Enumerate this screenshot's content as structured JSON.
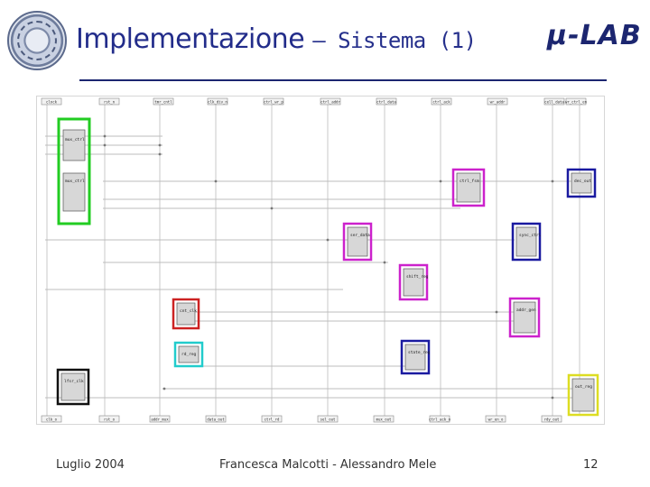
{
  "header": {
    "title_main": "Implementazione",
    "title_sub": "– Sistema (1)",
    "logo_text": "μ-LAB"
  },
  "footer": {
    "date": "Luglio 2004",
    "authors": "Francesca Malcotti - Alessandro Mele",
    "page": "12"
  },
  "diagram": {
    "top_ports": [
      "clock",
      "rst_n",
      "tmr_cntl",
      "clk_div_n",
      "ctrl_wr_p",
      "ctrl_addr",
      "ctrl_data",
      "ctrl_ack",
      "wr_addr",
      "cell_data",
      "wr_ctrl_en"
    ],
    "bottom_ports": [
      "clk_o",
      "rst_o",
      "addr_mux",
      "data_out",
      "ctrl_rd",
      "sel_out",
      "mux_out",
      "ctrl_ack_o",
      "wr_en_o",
      "rdy_out"
    ],
    "blocks": [
      {
        "label": "mux_ctrl",
        "color": "#22cc22"
      },
      {
        "label": "mux_ctrl",
        "color": "#22cc22"
      },
      {
        "label": "cnt_clk",
        "color": "#cc2222"
      },
      {
        "label": "rd_reg",
        "color": "#22cccc"
      },
      {
        "label": "lfsr_clk",
        "color": "#111111"
      },
      {
        "label": "ctrl_fsm",
        "color": "#cc22cc"
      },
      {
        "label": "ser_data",
        "color": "#cc22cc"
      },
      {
        "label": "shift_reg",
        "color": "#cc22cc"
      },
      {
        "label": "addr_gen",
        "color": "#cc22cc"
      },
      {
        "label": "sync_ctrl",
        "color": "#1a1aa0"
      },
      {
        "label": "state_reg",
        "color": "#1a1aa0"
      },
      {
        "label": "dec_out",
        "color": "#1a1aa0"
      },
      {
        "label": "out_reg",
        "color": "#dddd22"
      }
    ]
  }
}
